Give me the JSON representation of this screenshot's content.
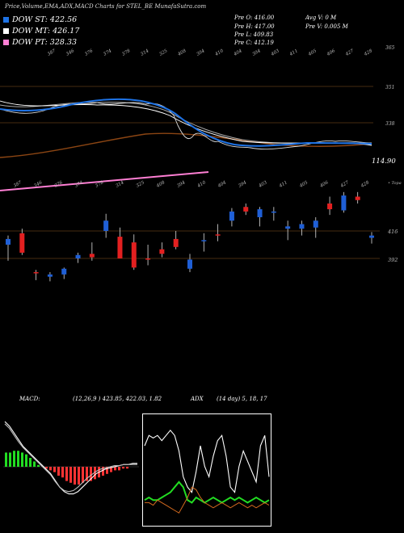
{
  "header": {
    "title": "Price,Volume,EMA,ADX,MACD Charts for STEL_BE MunafaSutra.com"
  },
  "legend": [
    {
      "label": "DOW ST: 422.56",
      "color": "#1e73e6"
    },
    {
      "label": "DOW MT: 426.17",
      "color": "#ffffff"
    },
    {
      "label": "DOW PT: 328.33",
      "color": "#ff7fd4"
    }
  ],
  "info": {
    "pre_o": "Pre   O: 416.00",
    "pre_h": "Pre   H: 417.00",
    "pre_l": "Pre   L: 409.83",
    "pre_c": "Pre   C: 412.19",
    "avg_v": "Avg V: 0  M",
    "pre_v": "Pre   V: 0.005 M"
  },
  "colors": {
    "up": "#e32020",
    "down": "#1f5fd6",
    "grid": "#8b5a1e",
    "ema_short": "#1e73e6",
    "ema_long": "#8b4513",
    "pt_line": "#ff7fd4",
    "hist_pos": "#22dd22",
    "hist_neg": "#ff3333",
    "adx": "#22dd22",
    "di_minus": "#d2691e"
  },
  "chart_data": [
    {
      "type": "line",
      "panel": "ema",
      "right_labels": [
        "365",
        "351",
        "338",
        "114.90"
      ],
      "tick_labels": [
        "387",
        "346",
        "376",
        "374",
        "378",
        "314",
        "325",
        "408",
        "394",
        "410",
        "404",
        "394",
        "403",
        "411",
        "405",
        "406",
        "427",
        "428"
      ],
      "series": [
        {
          "values": [
            338,
            342,
            339,
            340,
            341,
            340,
            341,
            339,
            340,
            341,
            340,
            339,
            338,
            336,
            335,
            335,
            334,
            334,
            334,
            333,
            333,
            333,
            333,
            333
          ]
        },
        {
          "values": [
            346,
            349,
            348,
            347,
            348,
            347,
            348,
            347,
            346,
            343,
            338,
            335,
            333,
            331,
            330,
            330,
            331,
            332,
            333,
            333,
            333,
            334,
            334,
            333
          ]
        }
      ]
    },
    {
      "type": "bar",
      "panel": "price",
      "price_labels": [
        "416",
        "392"
      ],
      "top_tick_labels": [
        "387",
        "346",
        "376",
        "374",
        "378",
        "314",
        "325",
        "408",
        "394",
        "410",
        "404",
        "394",
        "403",
        "411",
        "405",
        "406",
        "427",
        "428"
      ],
      "values": [
        {
          "o": 404,
          "h": 412,
          "l": 390,
          "c": 409
        },
        {
          "o": 414,
          "h": 418,
          "l": 395,
          "c": 397
        },
        {
          "o": 380,
          "h": 382,
          "l": 373,
          "c": 379
        },
        {
          "o": 376,
          "h": 380,
          "l": 372,
          "c": 378
        },
        {
          "o": 378,
          "h": 384,
          "l": 374,
          "c": 383
        },
        {
          "o": 392,
          "h": 397,
          "l": 388,
          "c": 395
        },
        {
          "o": 396,
          "h": 406,
          "l": 390,
          "c": 393
        },
        {
          "o": 416,
          "h": 431,
          "l": 410,
          "c": 425
        },
        {
          "o": 411,
          "h": 419,
          "l": 395,
          "c": 392
        },
        {
          "o": 406,
          "h": 413,
          "l": 382,
          "c": 384
        },
        {
          "o": 392,
          "h": 404,
          "l": 386,
          "c": 391
        },
        {
          "o": 400,
          "h": 406,
          "l": 393,
          "c": 396
        },
        {
          "o": 409,
          "h": 416,
          "l": 400,
          "c": 402
        },
        {
          "o": 383,
          "h": 396,
          "l": 380,
          "c": 391
        },
        {
          "o": 407,
          "h": 414,
          "l": 398,
          "c": 408
        },
        {
          "o": 413,
          "h": 422,
          "l": 407,
          "c": 412
        },
        {
          "o": 425,
          "h": 436,
          "l": 420,
          "c": 433
        },
        {
          "o": 437,
          "h": 440,
          "l": 430,
          "c": 433
        },
        {
          "o": 428,
          "h": 437,
          "l": 420,
          "c": 435
        },
        {
          "o": 432,
          "h": 437,
          "l": 425,
          "c": 433
        },
        {
          "o": 418,
          "h": 425,
          "l": 408,
          "c": 420
        },
        {
          "o": 418,
          "h": 425,
          "l": 412,
          "c": 422
        },
        {
          "o": 419,
          "h": 428,
          "l": 410,
          "c": 425
        },
        {
          "o": 440,
          "h": 446,
          "l": 430,
          "c": 435
        },
        {
          "o": 434,
          "h": 450,
          "l": 432,
          "c": 447
        },
        {
          "o": 446,
          "h": 450,
          "l": 440,
          "c": 443
        },
        {
          "o": 410,
          "h": 415,
          "l": 405,
          "c": 412
        }
      ]
    },
    {
      "type": "bar",
      "panel": "macd",
      "title": "MACD:",
      "values_label": "(12,26,9 ) 423.85, 422.03, 1.82",
      "histogram": [
        8,
        8,
        9,
        9,
        8,
        7,
        5,
        3,
        1,
        0,
        -1,
        -2,
        -3,
        -5,
        -6,
        -8,
        -9,
        -10,
        -10,
        -9,
        -8,
        -8,
        -7,
        -6,
        -5,
        -4,
        -3,
        -2,
        -2,
        -1,
        -1,
        0
      ],
      "series": [
        {
          "values": [
            40,
            36,
            30,
            24,
            18,
            14,
            10,
            6,
            2,
            -2,
            -6,
            -12,
            -18,
            -22,
            -24,
            -24,
            -22,
            -18,
            -14,
            -10,
            -6,
            -4,
            -2,
            -1,
            0,
            1,
            2,
            2,
            3,
            3
          ]
        },
        {
          "values": [
            38,
            34,
            28,
            22,
            17,
            13,
            9,
            5,
            1,
            -3,
            -7,
            -13,
            -18,
            -21,
            -22,
            -21,
            -18,
            -14,
            -10,
            -7,
            -4,
            -2,
            -1,
            0,
            1,
            1,
            2,
            2,
            2,
            2
          ]
        }
      ]
    },
    {
      "type": "line",
      "panel": "adx",
      "title": "ADX",
      "values_label": "(14  day) 5, 18, 17",
      "series": [
        {
          "values": [
            30,
            34,
            33,
            34,
            32,
            34,
            36,
            34,
            28,
            18,
            14,
            12,
            20,
            30,
            22,
            18,
            26,
            32,
            34,
            26,
            14,
            12,
            22,
            28,
            24,
            20,
            16,
            30,
            34,
            18
          ]
        },
        {
          "values": [
            9,
            10,
            9,
            9,
            10,
            11,
            12,
            14,
            16,
            14,
            9,
            8,
            10,
            9,
            8,
            9,
            10,
            9,
            8,
            9,
            10,
            9,
            10,
            9,
            8,
            9,
            10,
            9,
            8,
            9
          ]
        },
        {
          "values": [
            8,
            8,
            7,
            9,
            8,
            7,
            6,
            5,
            4,
            7,
            10,
            14,
            13,
            10,
            8,
            7,
            6,
            7,
            8,
            7,
            6,
            7,
            8,
            7,
            6,
            7,
            6,
            7,
            8,
            7
          ]
        }
      ]
    }
  ]
}
